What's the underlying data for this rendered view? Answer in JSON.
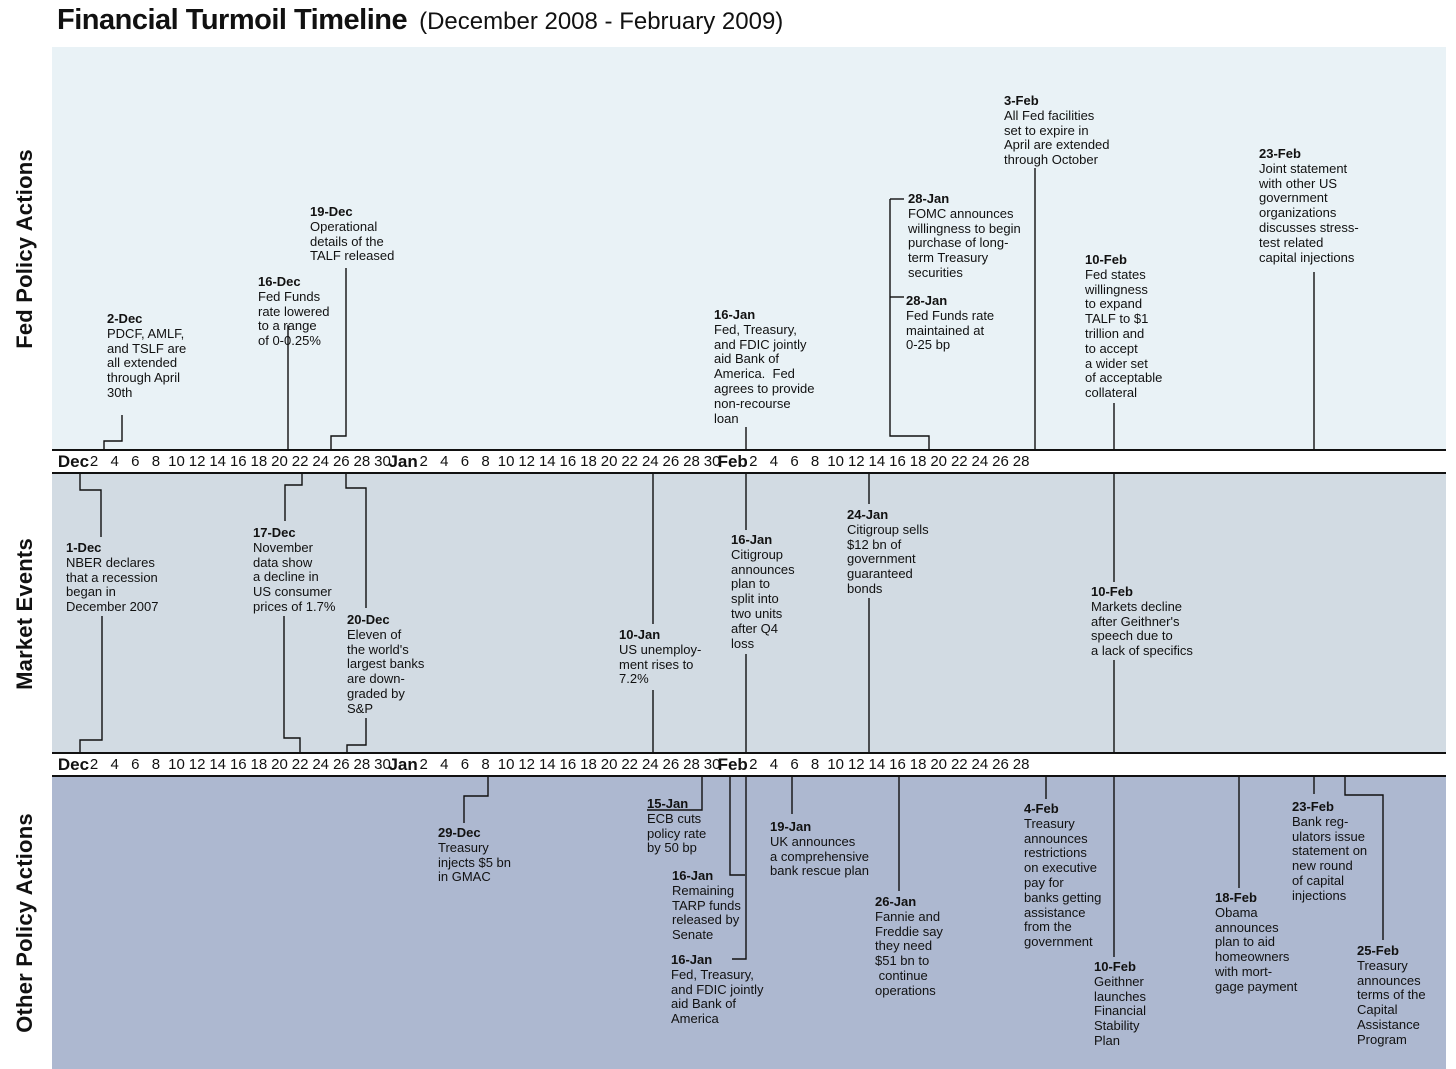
{
  "title": {
    "main": "Financial Turmoil Timeline",
    "sub": "(December 2008 - February 2009)"
  },
  "bands": {
    "fed": "Fed Policy Actions",
    "market": "Market Events",
    "other": "Other Policy Actions"
  },
  "axis": {
    "ticks": [
      "Dec",
      "2",
      "4",
      "6",
      "8",
      "10",
      "12",
      "14",
      "16",
      "18",
      "20",
      "22",
      "24",
      "26",
      "28",
      "30",
      "Jan",
      "2",
      "4",
      "6",
      "8",
      "10",
      "12",
      "14",
      "16",
      "18",
      "20",
      "22",
      "24",
      "26",
      "28",
      "30",
      "Feb",
      "2",
      "4",
      "6",
      "8",
      "10",
      "12",
      "14",
      "16",
      "18",
      "20",
      "22",
      "24",
      "26",
      "28"
    ]
  },
  "events": {
    "fed": [
      {
        "date": "2-Dec",
        "text": "PDCF, AMLF,\nand TSLF are\nall extended\nthrough April\n30th"
      },
      {
        "date": "16-Dec",
        "text": "Fed Funds\nrate lowered\nto a range\nof 0-0.25%"
      },
      {
        "date": "19-Dec",
        "text": "Operational\ndetails of the\nTALF released"
      },
      {
        "date": "16-Jan",
        "text": "Fed, Treasury,\nand FDIC jointly\naid Bank of\nAmerica.  Fed\nagrees to provide\nnon-recourse\nloan"
      },
      {
        "date": "28-Jan",
        "text": "FOMC announces\nwillingness to begin\npurchase of long-\nterm Treasury\nsecurities"
      },
      {
        "date": "28-Jan",
        "text": "Fed Funds rate\nmaintained at\n0-25 bp"
      },
      {
        "date": "3-Feb",
        "text": "All Fed facilities\nset to expire in\nApril are extended\nthrough October"
      },
      {
        "date": "10-Feb",
        "text": "Fed states\nwillingness\nto expand\nTALF to $1\ntrillion and\nto accept\na wider set\nof acceptable\ncollateral"
      },
      {
        "date": "23-Feb",
        "text": "Joint statement\nwith other US\ngovernment\norganizations\ndiscusses stress-\ntest related\ncapital injections"
      }
    ],
    "market": [
      {
        "date": "1-Dec",
        "text": "NBER declares\nthat a recession\nbegan in\nDecember 2007"
      },
      {
        "date": "17-Dec",
        "text": "November\ndata show\na decline in\nUS consumer\nprices of 1.7%"
      },
      {
        "date": "20-Dec",
        "text": "Eleven of\nthe world's\nlargest banks\nare down-\ngraded by\nS&P"
      },
      {
        "date": "10-Jan",
        "text": "US unemploy-\nment rises to\n7.2%"
      },
      {
        "date": "16-Jan",
        "text": "Citigroup\nannounces\nplan to\nsplit into\ntwo units\nafter Q4\nloss"
      },
      {
        "date": "24-Jan",
        "text": "Citigroup sells\n$12 bn of\ngovernment\nguaranteed\nbonds"
      },
      {
        "date": "10-Feb",
        "text": "Markets decline\nafter Geithner's\nspeech due to\na lack of specifics"
      }
    ],
    "other": [
      {
        "date": "29-Dec",
        "text": "Treasury\ninjects $5 bn\nin GMAC"
      },
      {
        "date": "15-Jan",
        "text": "ECB cuts\npolicy rate\nby 50 bp"
      },
      {
        "date": "16-Jan",
        "text": "Remaining\nTARP funds\nreleased by\nSenate"
      },
      {
        "date": "16-Jan",
        "text": "Fed, Treasury,\nand FDIC jointly\naid Bank of\nAmerica"
      },
      {
        "date": "19-Jan",
        "text": "UK announces\na comprehensive\nbank rescue plan"
      },
      {
        "date": "26-Jan",
        "text": "Fannie and\nFreddie say\nthey need\n$51 bn to\n continue\noperations"
      },
      {
        "date": "4-Feb",
        "text": "Treasury\nannounces\nrestrictions\non executive\npay for\nbanks getting\nassistance\nfrom the\ngovernment"
      },
      {
        "date": "10-Feb",
        "text": "Geithner\nlaunches\nFinancial\nStability\nPlan"
      },
      {
        "date": "18-Feb",
        "text": "Obama\nannounces\nplan to aid\nhomeowners\nwith mort-\ngage payment"
      },
      {
        "date": "23-Feb",
        "text": "Bank reg-\nulators issue\nstatement on\nnew round\nof capital\ninjections"
      },
      {
        "date": "25-Feb",
        "text": "Treasury\nannounces\nterms of the\nCapital\nAssistance\nProgram"
      }
    ]
  }
}
